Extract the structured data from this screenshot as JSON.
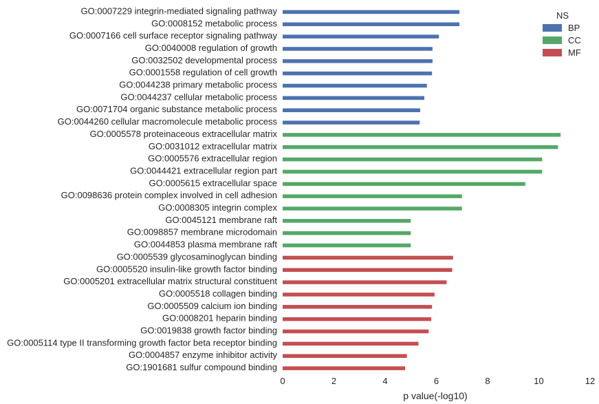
{
  "chart_data": {
    "type": "bar",
    "orientation": "horizontal",
    "xlabel": "p value(-log10)",
    "ylabel": "",
    "xlim": [
      0,
      12
    ],
    "xticks": [
      "0",
      "2",
      "4",
      "6",
      "8",
      "10",
      "12"
    ],
    "grid": false,
    "legend": {
      "title": "NS",
      "position": "top-right",
      "entries": [
        {
          "name": "BP",
          "color": "#4C72B0"
        },
        {
          "name": "CC",
          "color": "#55A868"
        },
        {
          "name": "MF",
          "color": "#C44E52"
        }
      ]
    },
    "categories": [
      "GO:0007229 integrin-mediated signaling pathway",
      "GO:0008152 metabolic process",
      "GO:0007166 cell surface receptor signaling pathway",
      "GO:0040008 regulation of growth",
      "GO:0032502 developmental process",
      "GO:0001558 regulation of cell growth",
      "GO:0044238 primary metabolic process",
      "GO:0044237 cellular metabolic process",
      "GO:0071704 organic substance metabolic process",
      "GO:0044260 cellular macromolecule metabolic process",
      "GO:0005578 proteinaceous extracellular matrix",
      "GO:0031012 extracellular matrix",
      "GO:0005576 extracellular region",
      "GO:0044421 extracellular region part",
      "GO:0005615 extracellular space",
      "GO:0098636 protein complex involved in cell adhesion",
      "GO:0008305 integrin complex",
      "GO:0045121 membrane raft",
      "GO:0098857 membrane microdomain",
      "GO:0044853 plasma membrane raft",
      "GO:0005539 glycosaminoglycan binding",
      "GO:0005520 insulin-like growth factor binding",
      "GO:0005201 extracellular matrix structural constituent",
      "GO:0005518 collagen binding",
      "GO:0005509 calcium ion binding",
      "GO:0008201 heparin binding",
      "GO:0019838 growth factor binding",
      "GO:0005114 type II transforming growth factor beta receptor binding",
      "GO:0004857 enzyme inhibitor activity",
      "GO:1901681 sulfur compound binding"
    ],
    "values": [
      6.9,
      6.9,
      6.1,
      5.85,
      5.85,
      5.83,
      5.63,
      5.53,
      5.37,
      5.35,
      10.85,
      10.75,
      10.13,
      10.13,
      9.47,
      7.0,
      7.0,
      5.0,
      5.0,
      5.0,
      6.65,
      6.62,
      6.4,
      5.93,
      5.83,
      5.8,
      5.7,
      5.3,
      4.85,
      4.78
    ],
    "groups": [
      "BP",
      "BP",
      "BP",
      "BP",
      "BP",
      "BP",
      "BP",
      "BP",
      "BP",
      "BP",
      "CC",
      "CC",
      "CC",
      "CC",
      "CC",
      "CC",
      "CC",
      "CC",
      "CC",
      "CC",
      "MF",
      "MF",
      "MF",
      "MF",
      "MF",
      "MF",
      "MF",
      "MF",
      "MF",
      "MF"
    ]
  }
}
